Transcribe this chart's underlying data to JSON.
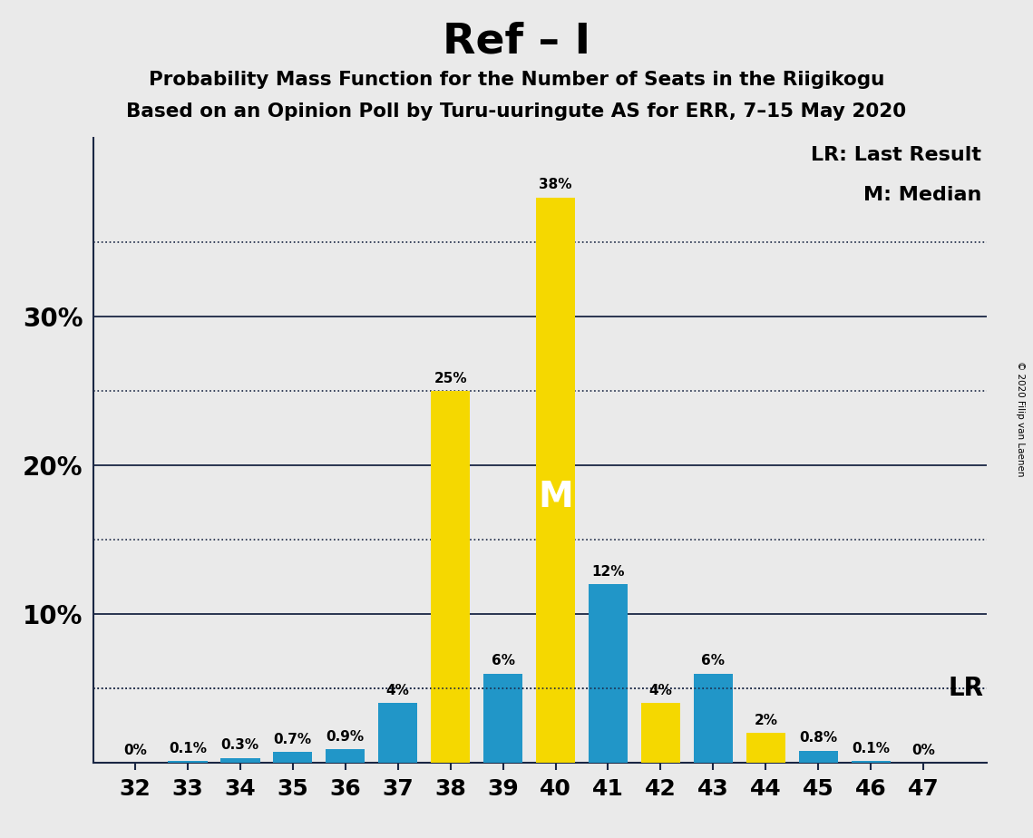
{
  "title": "Ref – I",
  "subtitle1": "Probability Mass Function for the Number of Seats in the Riigikogu",
  "subtitle2": "Based on an Opinion Poll by Turu-uuringute AS for ERR, 7–15 May 2020",
  "copyright": "© 2020 Filip van Laenen",
  "seats": [
    32,
    33,
    34,
    35,
    36,
    37,
    38,
    39,
    40,
    41,
    42,
    43,
    44,
    45,
    46,
    47
  ],
  "values": [
    0.0,
    0.1,
    0.3,
    0.7,
    0.9,
    4.0,
    25.0,
    6.0,
    38.0,
    12.0,
    4.0,
    6.0,
    2.0,
    0.8,
    0.1,
    0.0
  ],
  "colors": [
    "#2196c8",
    "#2196c8",
    "#2196c8",
    "#2196c8",
    "#2196c8",
    "#2196c8",
    "#f5d800",
    "#2196c8",
    "#f5d800",
    "#2196c8",
    "#f5d800",
    "#2196c8",
    "#f5d800",
    "#2196c8",
    "#2196c8",
    "#2196c8"
  ],
  "labels": [
    "0%",
    "0.1%",
    "0.3%",
    "0.7%",
    "0.9%",
    "4%",
    "25%",
    "6%",
    "38%",
    "12%",
    "4%",
    "6%",
    "2%",
    "0.8%",
    "0.1%",
    "0%"
  ],
  "lr_value": 5.0,
  "median_seat": 40,
  "median_label": "M",
  "lr_label": "LR",
  "legend_lr": "LR: Last Result",
  "legend_m": "M: Median",
  "background_color": "#eaeaea",
  "bar_width": 0.75,
  "solid_lines": [
    10,
    20,
    30
  ],
  "dotted_lines": [
    5,
    15,
    25,
    35
  ],
  "ytick_positions": [
    10,
    20,
    30
  ],
  "ytick_labels": [
    "10%",
    "20%",
    "30%"
  ],
  "ylim": [
    0,
    42
  ],
  "xlim_left": 31.2,
  "xlim_right": 48.2,
  "dark_color": "#1a2744"
}
